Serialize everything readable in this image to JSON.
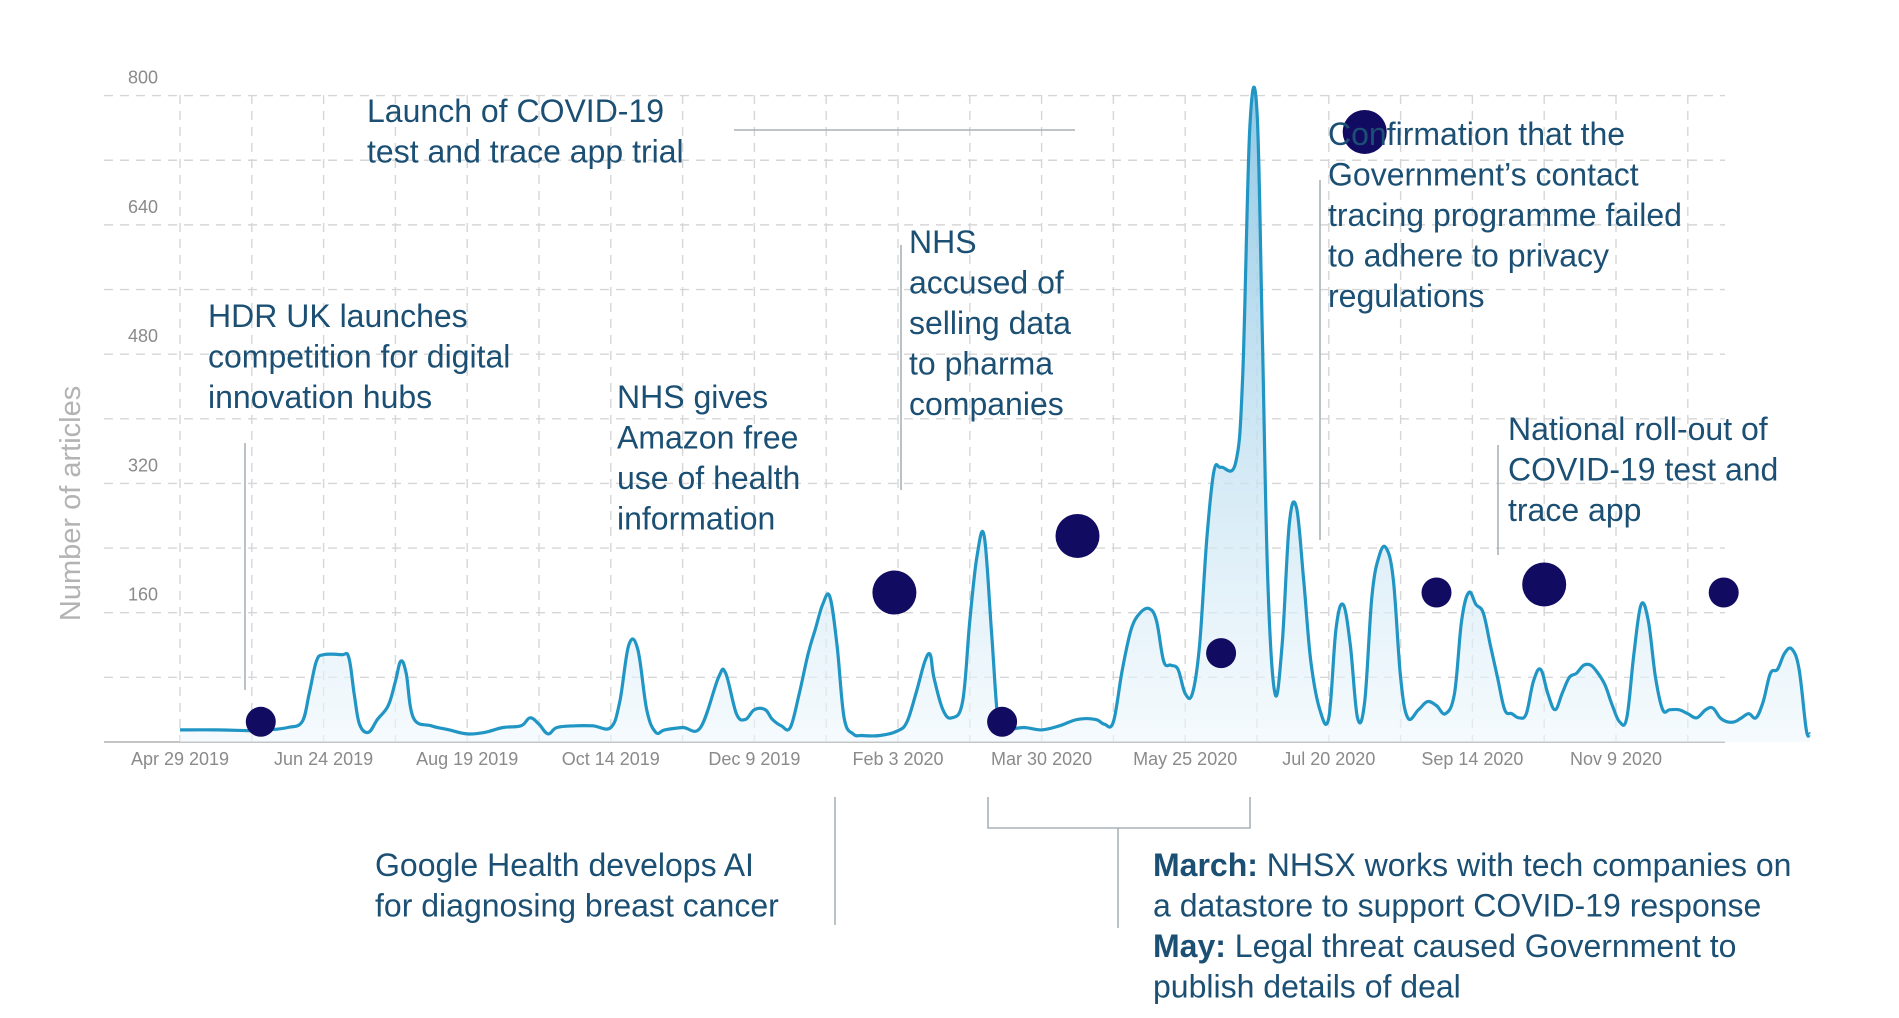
{
  "chart_data": {
    "type": "area",
    "ylabel": "Number of articles",
    "xlabel": "",
    "ylim": [
      0,
      870
    ],
    "y_ticks": [
      160,
      320,
      480,
      640,
      800
    ],
    "x_ticks": [
      "Apr 29 2019",
      "Jun 24 2019",
      "Aug 19 2019",
      "Oct 14 2019",
      "Dec 9 2019",
      "Feb 3 2020",
      "Mar 30 2020",
      "May 25 2020",
      "Jul 20 2020",
      "Sep 14 2020",
      "Nov 9 2020"
    ],
    "grid": true,
    "colors": {
      "line": "#2196c4",
      "fill_top": "#8cc6e4",
      "fill_bottom": "#eef7fc",
      "marker": "#120b62",
      "annotation": "#1b4f73"
    },
    "series": [
      {
        "points": [
          [
            0,
            15
          ],
          [
            2,
            15
          ],
          [
            4,
            14
          ],
          [
            5,
            15
          ],
          [
            6,
            18
          ],
          [
            6.8,
            25
          ],
          [
            7.2,
            60
          ],
          [
            7.6,
            100
          ],
          [
            8,
            108
          ],
          [
            9,
            108
          ],
          [
            9.4,
            105
          ],
          [
            9.7,
            60
          ],
          [
            10,
            22
          ],
          [
            10.5,
            12
          ],
          [
            11,
            28
          ],
          [
            11.6,
            45
          ],
          [
            12,
            75
          ],
          [
            12.3,
            100
          ],
          [
            12.6,
            85
          ],
          [
            13,
            30
          ],
          [
            14,
            20
          ],
          [
            15,
            15
          ],
          [
            16,
            10
          ],
          [
            17,
            12
          ],
          [
            18,
            18
          ],
          [
            19,
            20
          ],
          [
            19.5,
            30
          ],
          [
            20,
            22
          ],
          [
            20.5,
            10
          ],
          [
            21,
            18
          ],
          [
            22,
            20
          ],
          [
            23,
            20
          ],
          [
            24,
            18
          ],
          [
            24.5,
            50
          ],
          [
            25,
            120
          ],
          [
            25.5,
            115
          ],
          [
            26,
            40
          ],
          [
            26.5,
            12
          ],
          [
            27,
            15
          ],
          [
            28,
            18
          ],
          [
            29,
            18
          ],
          [
            30,
            80
          ],
          [
            30.4,
            85
          ],
          [
            31,
            35
          ],
          [
            31.5,
            28
          ],
          [
            32,
            40
          ],
          [
            32.6,
            40
          ],
          [
            33,
            28
          ],
          [
            33.5,
            20
          ],
          [
            34,
            18
          ],
          [
            34.5,
            60
          ],
          [
            35,
            110
          ],
          [
            35.4,
            140
          ],
          [
            35.8,
            170
          ],
          [
            36.2,
            180
          ],
          [
            36.6,
            120
          ],
          [
            37,
            30
          ],
          [
            37.5,
            10
          ],
          [
            38,
            8
          ],
          [
            39,
            8
          ],
          [
            40,
            14
          ],
          [
            40.5,
            25
          ],
          [
            41,
            60
          ],
          [
            41.5,
            100
          ],
          [
            41.8,
            108
          ],
          [
            42,
            80
          ],
          [
            42.5,
            40
          ],
          [
            43,
            30
          ],
          [
            43.6,
            50
          ],
          [
            44,
            150
          ],
          [
            44.4,
            230
          ],
          [
            44.8,
            255
          ],
          [
            45.2,
            140
          ],
          [
            45.6,
            20
          ],
          [
            46,
            15
          ],
          [
            47,
            18
          ],
          [
            48,
            15
          ],
          [
            49,
            20
          ],
          [
            50,
            28
          ],
          [
            51,
            28
          ],
          [
            51.5,
            22
          ],
          [
            52,
            25
          ],
          [
            52.5,
            90
          ],
          [
            53,
            140
          ],
          [
            53.5,
            160
          ],
          [
            54,
            165
          ],
          [
            54.4,
            150
          ],
          [
            54.8,
            100
          ],
          [
            55.2,
            95
          ],
          [
            55.6,
            90
          ],
          [
            56,
            60
          ],
          [
            56.4,
            60
          ],
          [
            56.8,
            120
          ],
          [
            57.2,
            250
          ],
          [
            57.6,
            335
          ],
          [
            58,
            340
          ],
          [
            58.8,
            345
          ],
          [
            59.2,
            450
          ],
          [
            59.6,
            760
          ],
          [
            60,
            780
          ],
          [
            60.3,
            500
          ],
          [
            60.6,
            200
          ],
          [
            61,
            60
          ],
          [
            61.4,
            120
          ],
          [
            61.8,
            270
          ],
          [
            62.2,
            290
          ],
          [
            62.6,
            200
          ],
          [
            63,
            100
          ],
          [
            63.5,
            40
          ],
          [
            64,
            30
          ],
          [
            64.4,
            140
          ],
          [
            64.8,
            170
          ],
          [
            65.2,
            120
          ],
          [
            65.6,
            30
          ],
          [
            66,
            50
          ],
          [
            66.4,
            180
          ],
          [
            66.8,
            230
          ],
          [
            67.2,
            240
          ],
          [
            67.6,
            200
          ],
          [
            68,
            80
          ],
          [
            68.4,
            30
          ],
          [
            69,
            40
          ],
          [
            69.5,
            50
          ],
          [
            70,
            45
          ],
          [
            70.5,
            35
          ],
          [
            71,
            60
          ],
          [
            71.4,
            150
          ],
          [
            71.8,
            185
          ],
          [
            72.2,
            170
          ],
          [
            72.6,
            160
          ],
          [
            73,
            120
          ],
          [
            73.4,
            80
          ],
          [
            73.8,
            40
          ],
          [
            74.2,
            35
          ],
          [
            74.6,
            30
          ],
          [
            75,
            35
          ],
          [
            75.4,
            75
          ],
          [
            75.8,
            90
          ],
          [
            76.2,
            60
          ],
          [
            76.6,
            40
          ],
          [
            77,
            60
          ],
          [
            77.4,
            80
          ],
          [
            77.8,
            85
          ],
          [
            78.2,
            95
          ],
          [
            78.6,
            95
          ],
          [
            79,
            85
          ],
          [
            79.4,
            70
          ],
          [
            79.8,
            45
          ],
          [
            80.2,
            25
          ],
          [
            80.6,
            30
          ],
          [
            81,
            110
          ],
          [
            81.4,
            170
          ],
          [
            81.8,
            150
          ],
          [
            82.2,
            80
          ],
          [
            82.6,
            40
          ],
          [
            83,
            40
          ],
          [
            83.5,
            40
          ],
          [
            84,
            35
          ],
          [
            84.5,
            30
          ],
          [
            85,
            40
          ],
          [
            85.4,
            42
          ],
          [
            85.8,
            30
          ],
          [
            86.2,
            25
          ],
          [
            86.6,
            25
          ],
          [
            87,
            30
          ],
          [
            87.4,
            35
          ],
          [
            87.8,
            30
          ],
          [
            88.2,
            50
          ],
          [
            88.6,
            85
          ],
          [
            89,
            90
          ],
          [
            89.4,
            110
          ],
          [
            89.8,
            115
          ],
          [
            90.2,
            90
          ],
          [
            90.6,
            15
          ],
          [
            90.8,
            10
          ]
        ]
      }
    ],
    "markers": [
      {
        "x": 4.5,
        "y": 25,
        "size": "small"
      },
      {
        "x": 39.8,
        "y": 185,
        "size": "large"
      },
      {
        "x": 45.8,
        "y": 25,
        "size": "small"
      },
      {
        "x": 50,
        "y": 255,
        "size": "large"
      },
      {
        "x": 58,
        "y": 110,
        "size": "small"
      },
      {
        "x": 66,
        "y": 755,
        "size": "large"
      },
      {
        "x": 70,
        "y": 185,
        "size": "small"
      },
      {
        "x": 76,
        "y": 195,
        "size": "large"
      },
      {
        "x": 86,
        "y": 185,
        "size": "small"
      }
    ],
    "annotations": [
      {
        "lines": [
          "HDR UK launches",
          "competition for digital",
          "innovation hubs"
        ]
      },
      {
        "lines": [
          "NHS gives",
          "Amazon free",
          "use of health",
          "information"
        ]
      },
      {
        "lines": [
          "NHS",
          "accused of",
          "selling data",
          "to pharma",
          "companies"
        ]
      },
      {
        "lines": [
          "Launch of COVID-19",
          "test and trace app trial"
        ]
      },
      {
        "lines": [
          "Confirmation that the",
          "Government’s contact",
          "tracing programme failed",
          "to adhere to privacy",
          "regulations"
        ]
      },
      {
        "lines": [
          "National roll-out of",
          "COVID-19 test and",
          "trace app"
        ]
      },
      {
        "lines": [
          "Google Health develops AI",
          "for diagnosing breast cancer"
        ]
      }
    ],
    "rich_annotation": [
      {
        "bold": "March:",
        "text": " NHSX works with tech companies on"
      },
      {
        "bold": "",
        "text": "a datastore to support COVID-19 response"
      },
      {
        "bold": "May:",
        "text": " Legal threat caused Government to"
      },
      {
        "bold": "",
        "text": "publish details of deal"
      }
    ]
  }
}
